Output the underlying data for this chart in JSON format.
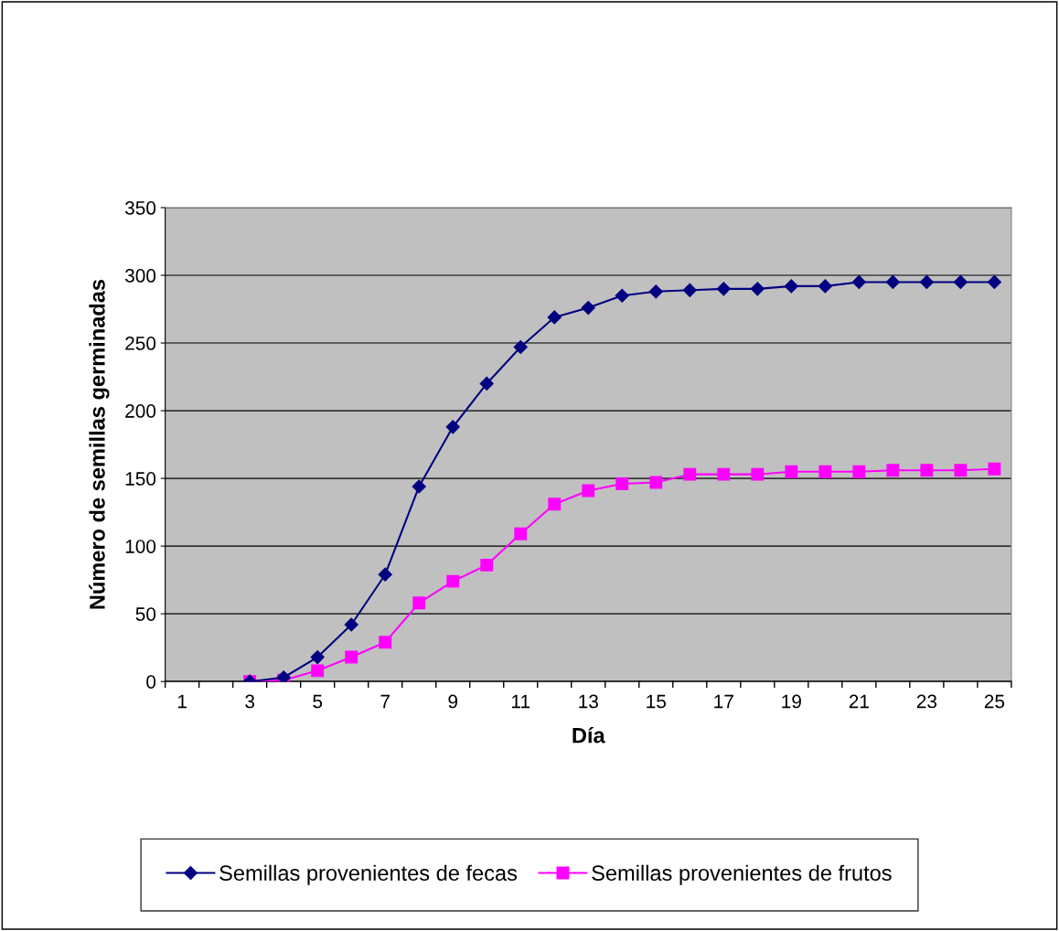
{
  "chart_data": {
    "type": "line",
    "xlabel": "Día",
    "ylabel": "Número de semillas germinadas",
    "categories": [
      "1",
      null,
      "3",
      null,
      "5",
      null,
      "7",
      null,
      "9",
      null,
      "11",
      null,
      "13",
      null,
      "15",
      null,
      "17",
      null,
      "19",
      null,
      "21",
      null,
      "23",
      null,
      "25"
    ],
    "series": [
      {
        "name": "Semillas provenientes de fecas",
        "color": "#000080",
        "marker": "diamond",
        "values": [
          null,
          null,
          0,
          3,
          18,
          42,
          79,
          144,
          188,
          220,
          247,
          269,
          276,
          285,
          288,
          289,
          290,
          290,
          292,
          292,
          295,
          295,
          295,
          295,
          295
        ]
      },
      {
        "name": "Semillas provenientes de frutos",
        "color": "#ff00ff",
        "marker": "square",
        "values": [
          null,
          null,
          0,
          1,
          8,
          18,
          29,
          58,
          74,
          86,
          109,
          131,
          141,
          146,
          147,
          153,
          153,
          153,
          155,
          155,
          155,
          156,
          156,
          156,
          157
        ]
      }
    ],
    "ylim": [
      0,
      350
    ],
    "yticks": [
      0,
      50,
      100,
      150,
      200,
      250,
      300,
      350
    ],
    "grid": "y",
    "legend": "bottom"
  }
}
